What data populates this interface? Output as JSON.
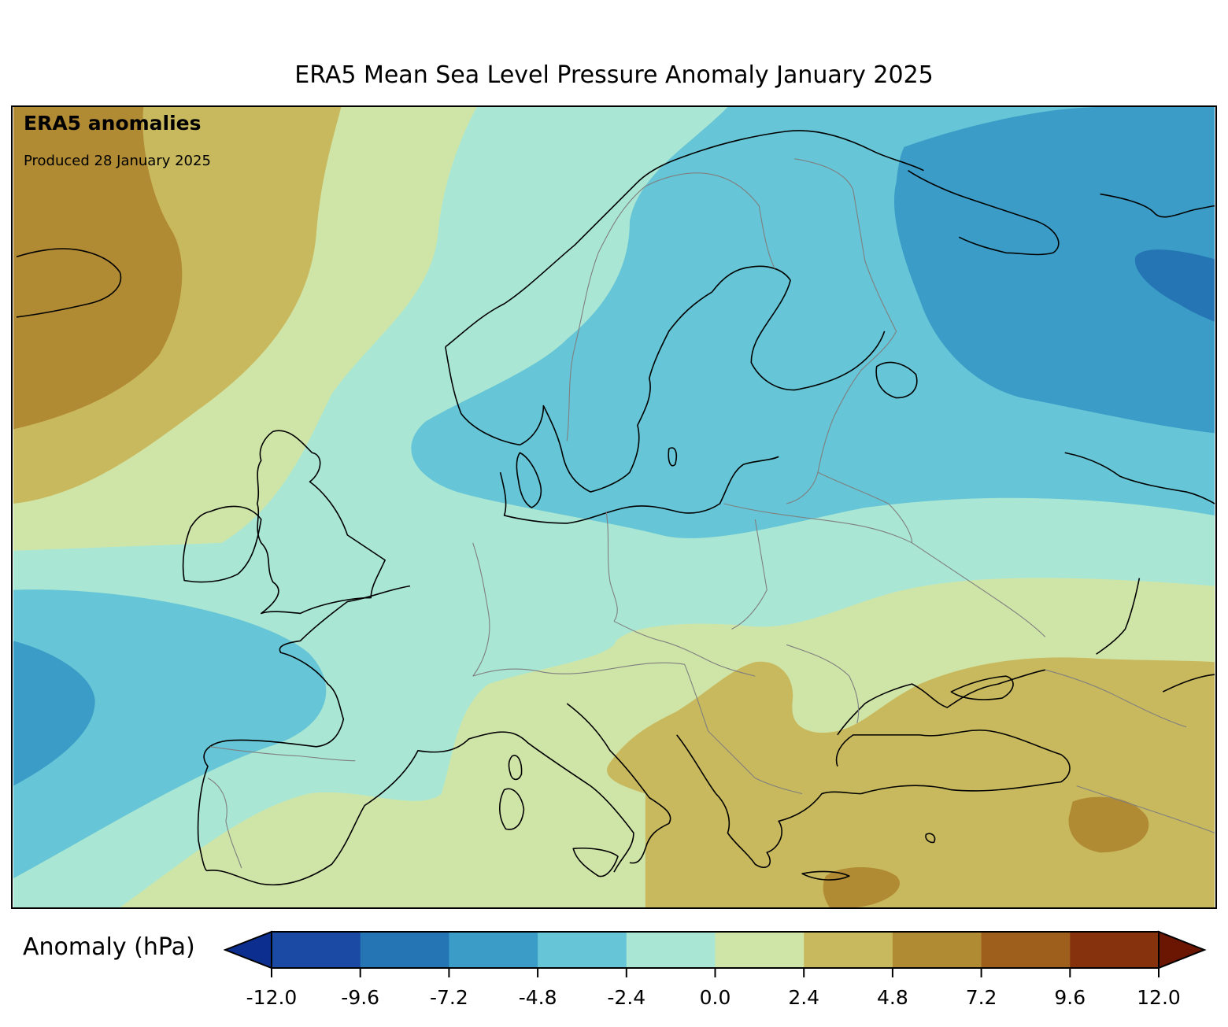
{
  "title": "ERA5 Mean Sea Level Pressure Anomaly January 2025",
  "map": {
    "overlay_title": "ERA5 anomalies",
    "overlay_subtitle": "Produced 28 January 2025"
  },
  "colorbar": {
    "label": "Anomaly (hPa)",
    "ticks": [
      "-12.0",
      "-9.6",
      "-7.2",
      "-4.8",
      "-2.4",
      "0.0",
      "2.4",
      "4.8",
      "7.2",
      "9.6",
      "12.0"
    ],
    "colors": [
      "#0b2e8f",
      "#1a4aa3",
      "#2574b4",
      "#3b9dc7",
      "#66c5d6",
      "#aae6d4",
      "#cfe5a8",
      "#c9b95e",
      "#b18a34",
      "#9e5e1c",
      "#86330d",
      "#6b1503"
    ]
  },
  "legend_classes": {
    "neg_12_to_9_6": "#1a4aa3",
    "neg_9_6_to_7_2": "#2574b4",
    "neg_7_2_to_4_8": "#3b9dc7",
    "neg_4_8_to_2_4": "#66c5d6",
    "neg_2_4_to_0": "#aae6d4",
    "pos_0_to_2_4": "#cfe5a8",
    "pos_2_4_to_4_8": "#c9b95e",
    "pos_4_8_to_7_2": "#b18a34"
  }
}
